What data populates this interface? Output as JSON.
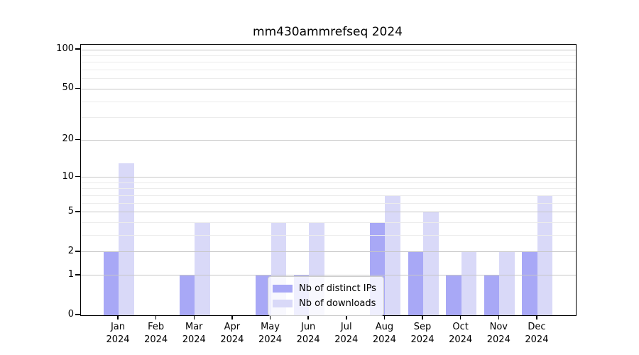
{
  "chart_data": {
    "type": "bar",
    "title": "mm430ammrefseq 2024",
    "categories": [
      "Jan 2024",
      "Feb 2024",
      "Mar 2024",
      "Apr 2024",
      "May 2024",
      "Jun 2024",
      "Jul 2024",
      "Aug 2024",
      "Sep 2024",
      "Oct 2024",
      "Nov 2024",
      "Dec 2024"
    ],
    "months": [
      "Jan",
      "Feb",
      "Mar",
      "Apr",
      "May",
      "Jun",
      "Jul",
      "Aug",
      "Sep",
      "Oct",
      "Nov",
      "Dec"
    ],
    "year": "2024",
    "series": [
      {
        "name": "Nb of distinct IPs",
        "color": "#a8a8f6",
        "values": [
          2,
          0,
          1,
          0,
          1,
          1,
          0,
          4,
          2,
          1,
          1,
          2
        ]
      },
      {
        "name": "Nb of downloads",
        "color": "#d9d9f8",
        "values": [
          13,
          0,
          4,
          0,
          4,
          4,
          0,
          7,
          5,
          2,
          2,
          7
        ]
      }
    ],
    "yscale": "log1p",
    "ylim": [
      0,
      110
    ],
    "y_major_ticks": [
      0,
      1,
      2,
      5,
      10,
      20,
      50,
      100
    ],
    "y_minor_ticks": [
      3,
      4,
      6,
      7,
      8,
      9,
      30,
      40,
      60,
      70,
      80,
      90
    ],
    "grid": "horizontal",
    "legend_position": "lower center",
    "colors": {
      "axis": "#000000",
      "major_grid": "#c6c6c6",
      "minor_grid": "#ececec",
      "ips_bar": "#a8a8f6",
      "downloads_bar": "#d9d9f8"
    }
  }
}
